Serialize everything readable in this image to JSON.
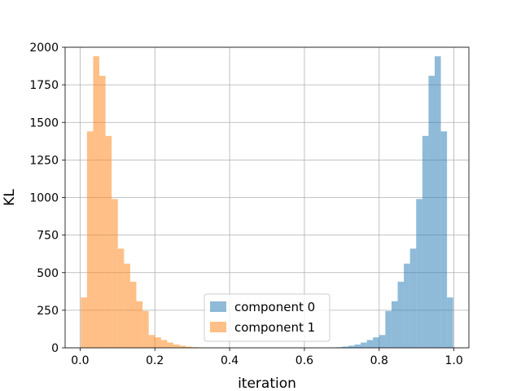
{
  "chart_data": {
    "type": "histogram",
    "xlabel": "iteration",
    "ylabel": "KL",
    "xlim": [
      -0.04,
      1.04
    ],
    "ylim": [
      0,
      2000
    ],
    "xticks": [
      0.0,
      0.2,
      0.4,
      0.6,
      0.8,
      1.0
    ],
    "xtick_labels": [
      "0.0",
      "0.2",
      "0.4",
      "0.6",
      "0.8",
      "1.0"
    ],
    "yticks": [
      0,
      250,
      500,
      750,
      1000,
      1250,
      1500,
      1750,
      2000
    ],
    "ytick_labels": [
      "0",
      "250",
      "500",
      "750",
      "1000",
      "1250",
      "1500",
      "1750",
      "2000"
    ],
    "grid": true,
    "legend_position": "lower-center",
    "series": [
      {
        "name": "component 0",
        "color": "#1f77b4",
        "alpha": 0.5,
        "bins": [
          {
            "x0": 0.668,
            "x1": 0.6845,
            "value": 2
          },
          {
            "x0": 0.6845,
            "x1": 0.701,
            "value": 4
          },
          {
            "x0": 0.701,
            "x1": 0.7175,
            "value": 8
          },
          {
            "x0": 0.7175,
            "x1": 0.734,
            "value": 14
          },
          {
            "x0": 0.734,
            "x1": 0.7505,
            "value": 22
          },
          {
            "x0": 0.7505,
            "x1": 0.767,
            "value": 35
          },
          {
            "x0": 0.767,
            "x1": 0.7835,
            "value": 52
          },
          {
            "x0": 0.7835,
            "x1": 0.8,
            "value": 70
          },
          {
            "x0": 0.8,
            "x1": 0.8165,
            "value": 85
          },
          {
            "x0": 0.8165,
            "x1": 0.833,
            "value": 245
          },
          {
            "x0": 0.833,
            "x1": 0.8495,
            "value": 310
          },
          {
            "x0": 0.8495,
            "x1": 0.866,
            "value": 440
          },
          {
            "x0": 0.866,
            "x1": 0.8825,
            "value": 560
          },
          {
            "x0": 0.8825,
            "x1": 0.899,
            "value": 660
          },
          {
            "x0": 0.899,
            "x1": 0.9155,
            "value": 990
          },
          {
            "x0": 0.9155,
            "x1": 0.932,
            "value": 1410
          },
          {
            "x0": 0.932,
            "x1": 0.9485,
            "value": 1810
          },
          {
            "x0": 0.9485,
            "x1": 0.965,
            "value": 1940
          },
          {
            "x0": 0.965,
            "x1": 0.9815,
            "value": 1440
          },
          {
            "x0": 0.9815,
            "x1": 0.998,
            "value": 335
          }
        ]
      },
      {
        "name": "component 1",
        "color": "#ff7f0e",
        "alpha": 0.5,
        "bins": [
          {
            "x0": 0.002,
            "x1": 0.0185,
            "value": 335
          },
          {
            "x0": 0.0185,
            "x1": 0.035,
            "value": 1440
          },
          {
            "x0": 0.035,
            "x1": 0.0515,
            "value": 1940
          },
          {
            "x0": 0.0515,
            "x1": 0.068,
            "value": 1810
          },
          {
            "x0": 0.068,
            "x1": 0.0845,
            "value": 1410
          },
          {
            "x0": 0.0845,
            "x1": 0.101,
            "value": 990
          },
          {
            "x0": 0.101,
            "x1": 0.1175,
            "value": 660
          },
          {
            "x0": 0.1175,
            "x1": 0.134,
            "value": 560
          },
          {
            "x0": 0.134,
            "x1": 0.1505,
            "value": 440
          },
          {
            "x0": 0.1505,
            "x1": 0.167,
            "value": 310
          },
          {
            "x0": 0.167,
            "x1": 0.1835,
            "value": 245
          },
          {
            "x0": 0.1835,
            "x1": 0.2,
            "value": 85
          },
          {
            "x0": 0.2,
            "x1": 0.2165,
            "value": 70
          },
          {
            "x0": 0.2165,
            "x1": 0.233,
            "value": 52
          },
          {
            "x0": 0.233,
            "x1": 0.2495,
            "value": 35
          },
          {
            "x0": 0.2495,
            "x1": 0.266,
            "value": 22
          },
          {
            "x0": 0.266,
            "x1": 0.2825,
            "value": 14
          },
          {
            "x0": 0.2825,
            "x1": 0.299,
            "value": 8
          },
          {
            "x0": 0.299,
            "x1": 0.3155,
            "value": 4
          },
          {
            "x0": 0.3155,
            "x1": 0.332,
            "value": 2
          }
        ]
      }
    ]
  }
}
